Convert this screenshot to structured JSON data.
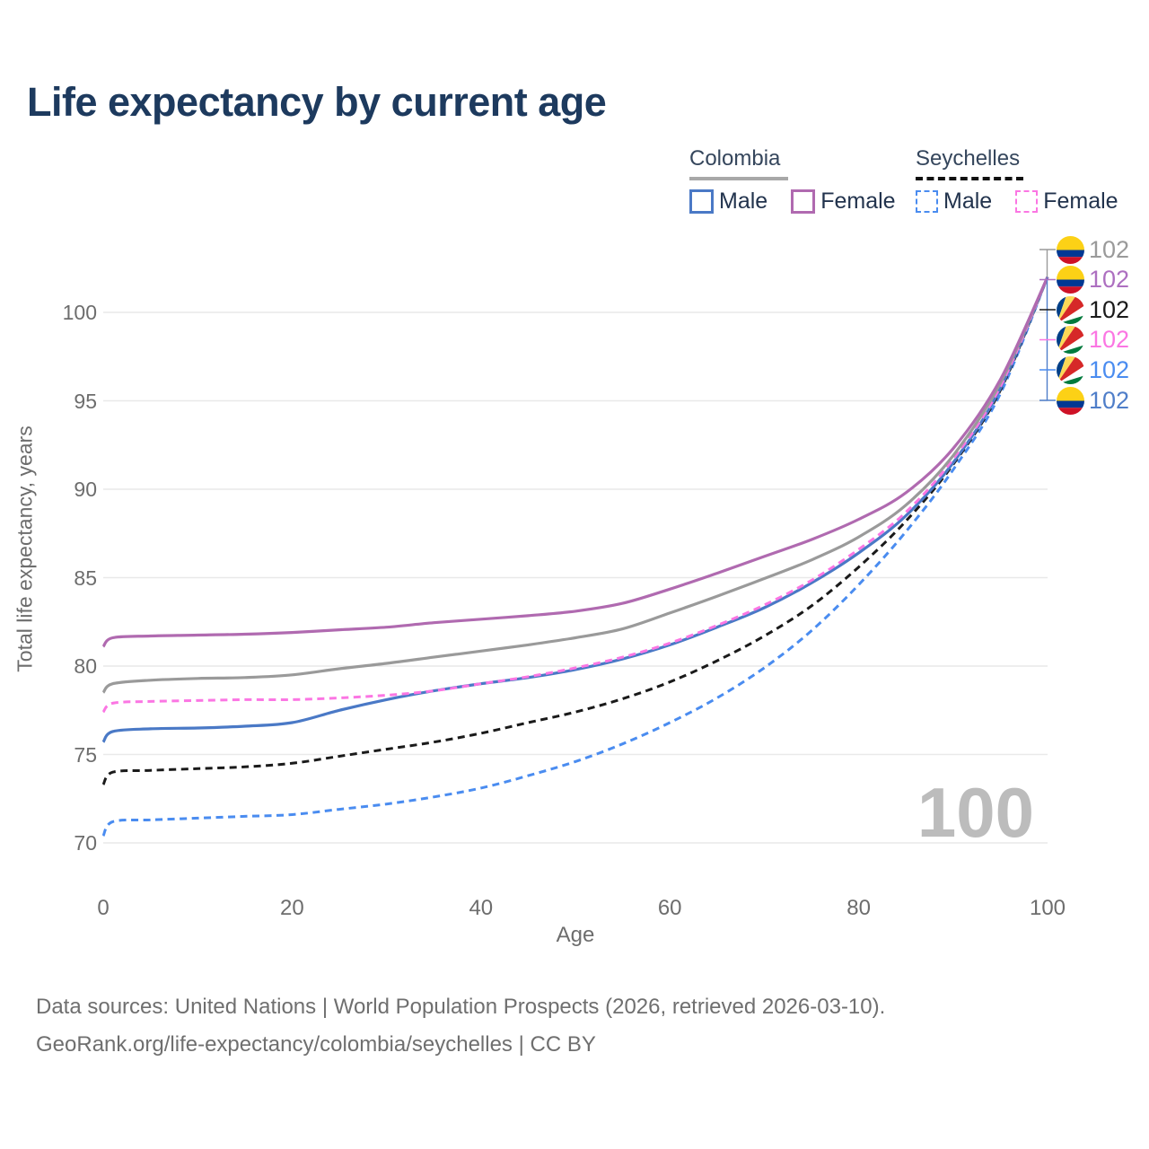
{
  "title": "Life expectancy by current age",
  "legend": {
    "groups": [
      {
        "label": "Colombia",
        "underline": "solid",
        "items": [
          {
            "label": "Male",
            "color": "#4a79c6",
            "dash": false
          },
          {
            "label": "Female",
            "color": "#b06ab0",
            "dash": false
          }
        ]
      },
      {
        "label": "Seychelles",
        "underline": "dashed",
        "items": [
          {
            "label": "Male",
            "color": "#4a8cf0",
            "dash": true
          },
          {
            "label": "Female",
            "color": "#fb76e3",
            "dash": true
          }
        ]
      }
    ]
  },
  "chart_data": {
    "type": "line",
    "title": "Life expectancy by current age",
    "xlabel": "Age",
    "ylabel": "Total life expectancy, years",
    "xlim": [
      0,
      100
    ],
    "ylim": [
      68.5,
      102.5
    ],
    "x_ticks": [
      0,
      20,
      40,
      60,
      80,
      100
    ],
    "y_ticks": [
      70,
      75,
      80,
      85,
      90,
      95,
      100
    ],
    "grid": "horizontal",
    "legend_position": "top-right",
    "x": [
      0,
      1,
      5,
      10,
      15,
      20,
      25,
      30,
      35,
      40,
      45,
      50,
      55,
      60,
      65,
      70,
      75,
      80,
      85,
      90,
      95,
      100
    ],
    "series": [
      {
        "name": "Colombia Female",
        "country": "colombia",
        "sex": "female",
        "color": "#b06ab0",
        "dash": false,
        "values": [
          81.1,
          81.6,
          81.7,
          81.75,
          81.8,
          81.9,
          82.05,
          82.2,
          82.45,
          82.65,
          82.85,
          83.1,
          83.55,
          84.35,
          85.25,
          86.2,
          87.15,
          88.3,
          89.8,
          92.3,
          96.2,
          102
        ]
      },
      {
        "name": "Colombia Both sexes",
        "country": "colombia",
        "sex": "both",
        "color": "#9a9a9a",
        "dash": false,
        "values": [
          78.5,
          79.0,
          79.2,
          79.3,
          79.35,
          79.5,
          79.85,
          80.15,
          80.5,
          80.85,
          81.2,
          81.6,
          82.1,
          83.0,
          83.95,
          84.95,
          86.0,
          87.3,
          89.1,
          91.9,
          96.0,
          102
        ]
      },
      {
        "name": "Colombia Male",
        "country": "colombia",
        "sex": "male",
        "color": "#4a79c6",
        "dash": false,
        "values": [
          75.7,
          76.3,
          76.45,
          76.5,
          76.6,
          76.8,
          77.5,
          78.1,
          78.6,
          79.0,
          79.35,
          79.8,
          80.4,
          81.2,
          82.2,
          83.3,
          84.7,
          86.4,
          88.5,
          91.5,
          95.7,
          102
        ]
      },
      {
        "name": "Seychelles Female",
        "country": "seychelles",
        "sex": "female",
        "color": "#fb76e3",
        "dash": true,
        "values": [
          77.4,
          77.9,
          78.0,
          78.05,
          78.1,
          78.1,
          78.2,
          78.35,
          78.6,
          79.0,
          79.4,
          79.9,
          80.5,
          81.3,
          82.3,
          83.45,
          84.85,
          86.6,
          88.7,
          91.7,
          95.8,
          102
        ]
      },
      {
        "name": "Seychelles Both sexes",
        "country": "seychelles",
        "sex": "both",
        "color": "#1a1a1a",
        "dash": true,
        "values": [
          73.3,
          74.0,
          74.1,
          74.2,
          74.3,
          74.5,
          74.9,
          75.3,
          75.7,
          76.2,
          76.8,
          77.4,
          78.15,
          79.1,
          80.3,
          81.7,
          83.4,
          85.6,
          88.2,
          91.4,
          95.6,
          102
        ]
      },
      {
        "name": "Seychelles Male",
        "country": "seychelles",
        "sex": "male",
        "color": "#4a8cf0",
        "dash": true,
        "values": [
          70.4,
          71.2,
          71.3,
          71.4,
          71.5,
          71.6,
          71.9,
          72.2,
          72.6,
          73.1,
          73.8,
          74.6,
          75.6,
          76.8,
          78.2,
          79.9,
          82.0,
          84.6,
          87.6,
          91.1,
          95.4,
          102
        ]
      }
    ],
    "end_labels": [
      {
        "country": "colombia",
        "value": "102",
        "color": "#9a9a9a"
      },
      {
        "country": "colombia",
        "value": "102",
        "color": "#ad6fc0"
      },
      {
        "country": "seychelles",
        "value": "102",
        "color": "#1a1a1a"
      },
      {
        "country": "seychelles",
        "value": "102",
        "color": "#fb76e3"
      },
      {
        "country": "seychelles",
        "value": "102",
        "color": "#4a8cf0"
      },
      {
        "country": "colombia",
        "value": "102",
        "color": "#4f7ec9"
      }
    ]
  },
  "annotation": {
    "current_age": "100"
  },
  "footer": {
    "line1": "Data sources: United Nations | World Population Prospects (2026, retrieved 2026-03-10).",
    "line2": "GeoRank.org/life-expectancy/colombia/seychelles | CC BY"
  },
  "colors": {
    "title": "#1d3a5e",
    "grid": "#e9e9e9",
    "tick": "#6d6d6d",
    "watermark": "#bcbcbc",
    "flag_colombia": [
      "#FCD116",
      "#003893",
      "#CE1126"
    ],
    "flag_seychelles": [
      "#003F87",
      "#FCD856",
      "#D62828",
      "#FFFFFF",
      "#007A3D"
    ]
  }
}
